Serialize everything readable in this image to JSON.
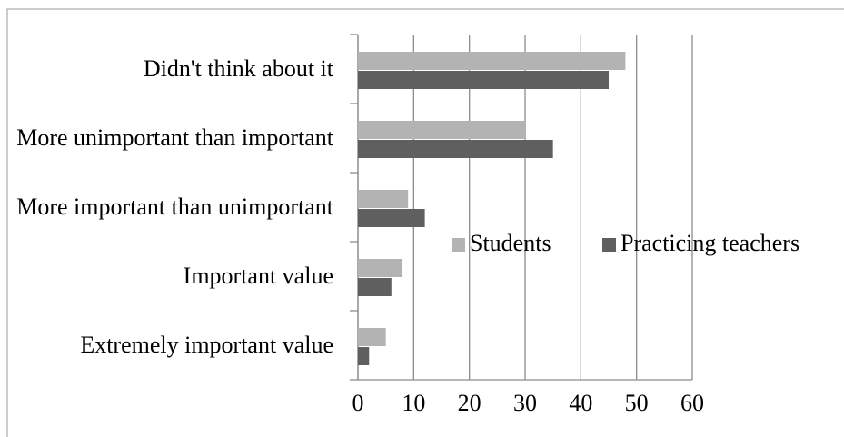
{
  "chart_data": {
    "type": "bar",
    "orientation": "horizontal",
    "categories": [
      "Didn't think about it",
      "More unimportant than important",
      "More important than unimportant",
      "Important value",
      "Extremely important value"
    ],
    "series": [
      {
        "name": "Students",
        "color": "#b3b3b3",
        "values": [
          48,
          30,
          9,
          8,
          5
        ]
      },
      {
        "name": "Practicing teachers",
        "color": "#5f5f5f",
        "values": [
          45,
          35,
          12,
          6,
          2
        ]
      }
    ],
    "xlim": [
      0,
      60
    ],
    "xticks": [
      0,
      10,
      20,
      30,
      40,
      50,
      60
    ],
    "grid": true,
    "legend": "inside-right"
  }
}
